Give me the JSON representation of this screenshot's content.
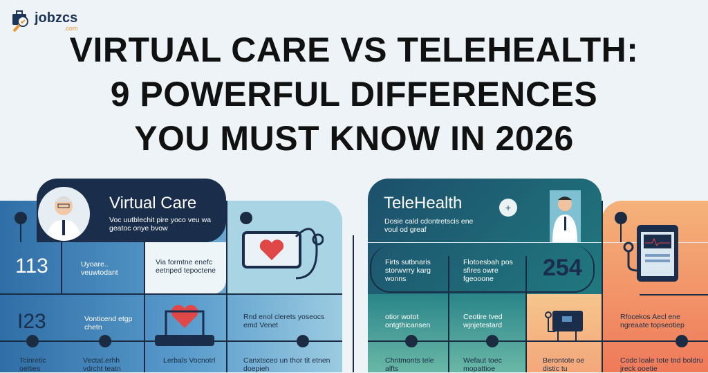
{
  "logo": {
    "brand": "jobzcs",
    "domain": ".com"
  },
  "title": {
    "line1": "VIRTUAL CARE VS TELEHEALTH:",
    "line2": "9 POWERFUL DIFFERENCES",
    "line3": "YOU MUST KNOW IN 2026"
  },
  "virtual_care": {
    "heading": "Virtual Care",
    "subtitle": "Voc uutblechit pire yoco veu wa geatoc onye bvow",
    "numbers": [
      "113",
      "I23"
    ],
    "cells": [
      "Uyoare.. veuwtodant",
      "Via formtne enefc eetnped tepoctene",
      "Vonticend etgp chetn",
      "Rnd enol clerets yoseocs emd Venet",
      "Tcinretic oelties",
      "Vectat.erhh vdrcht teatn",
      "Lerbals Vocnotrl",
      "Canxtsceo un thor tit etnen doepieh"
    ],
    "accent": "#1b2c42"
  },
  "telehealth": {
    "heading": "TeleHealth",
    "subtitle": "Dosie cald cdontretscis ene voul od greaf",
    "number": "254",
    "cells": [
      "Firts sutbnaris storwvrry karg wonns",
      "Flotoesbah pos sfires owre fgeooone",
      "otior wotot ontgthicansen",
      "Ceotire tved wjnjetestard",
      "Rfocekos Aecl ene ngreaate topseotiep",
      "Chntmonts tele alfts",
      "Wefaut toec mopattioe",
      "Berontote oe distic tu",
      "Codc loale tote tnd boldru jreck ooetie"
    ],
    "orange": "#f08a5d",
    "teal": "#1f6a7c"
  }
}
